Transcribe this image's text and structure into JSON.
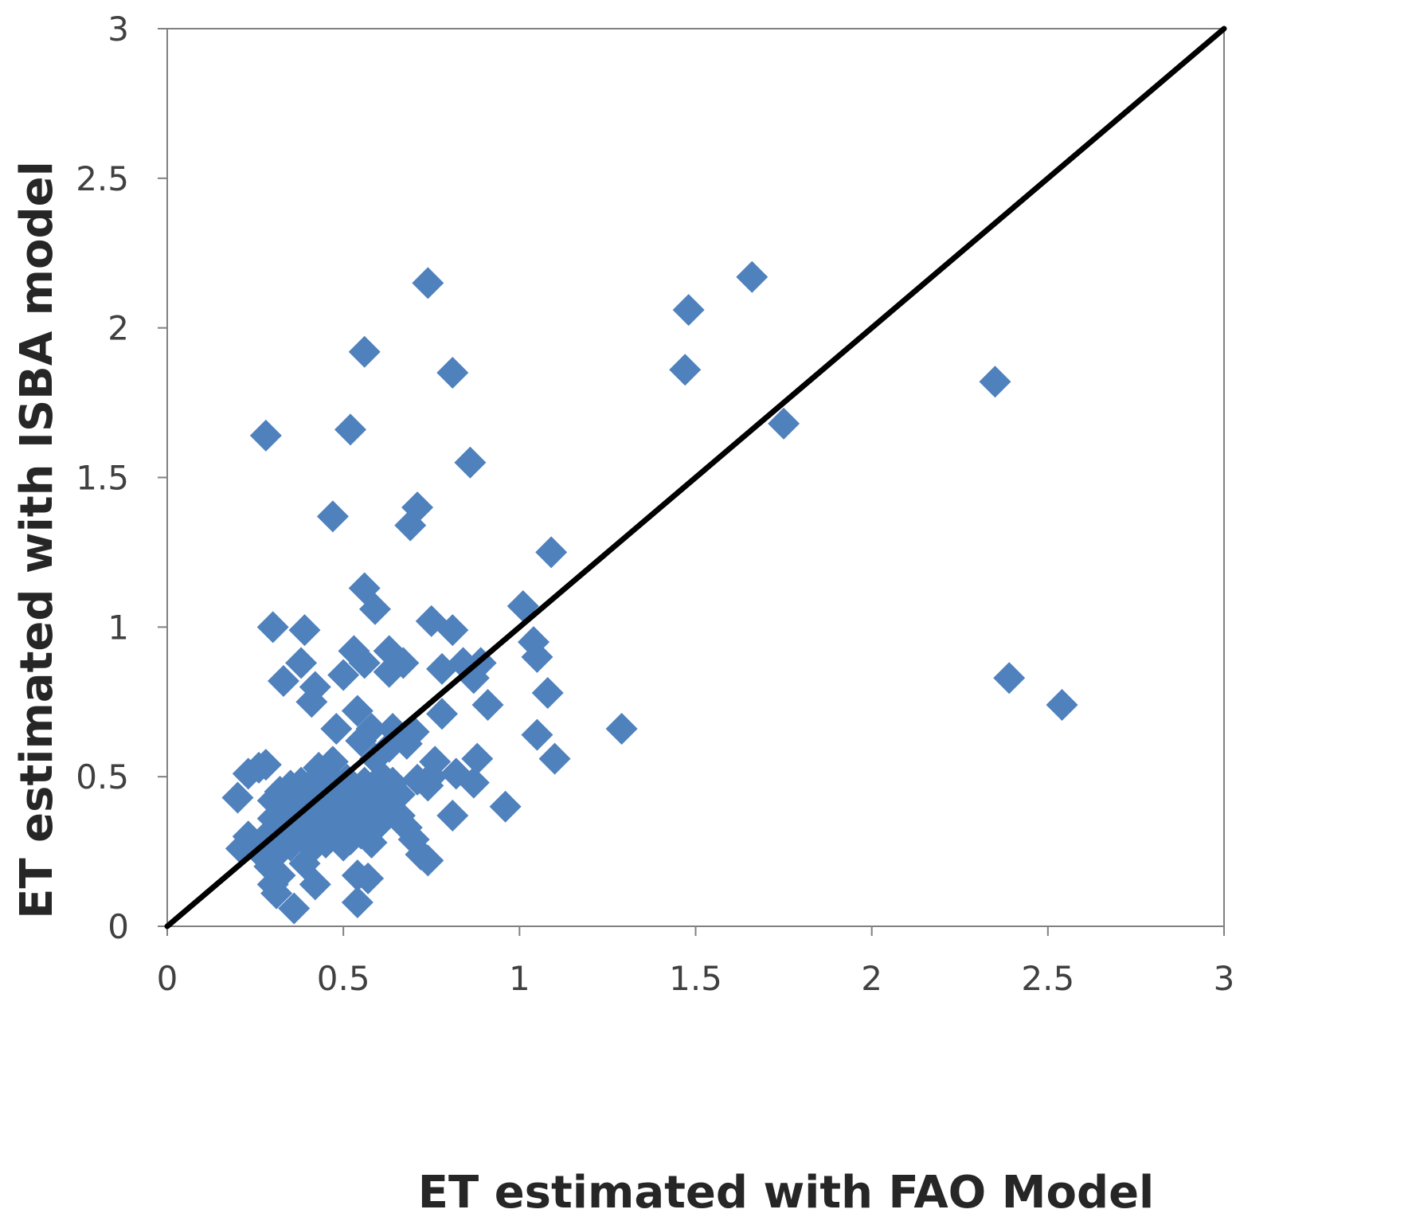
{
  "chart_data": {
    "type": "scatter",
    "title": "",
    "xlabel": "ET estimated with FAO Model",
    "ylabel": "ET estimated with ISBA model",
    "xlim": [
      0,
      3
    ],
    "ylim": [
      0,
      3
    ],
    "x_ticks": [
      "0",
      "0.5",
      "1",
      "1.5",
      "2",
      "2.5",
      "3"
    ],
    "y_ticks": [
      "0",
      "0.5",
      "1",
      "1.5",
      "2",
      "2.5",
      "3"
    ],
    "grid": false,
    "legend": "none",
    "marker": "diamond",
    "marker_color": "#4F81BD",
    "line_color": "#000000",
    "reference_line": {
      "name": "1:1 line",
      "x": [
        0,
        3
      ],
      "y": [
        0,
        3
      ]
    },
    "series": [
      {
        "name": "ET",
        "points": [
          [
            0.74,
            2.15
          ],
          [
            1.66,
            2.17
          ],
          [
            1.48,
            2.06
          ],
          [
            0.56,
            1.92
          ],
          [
            0.81,
            1.85
          ],
          [
            1.47,
            1.86
          ],
          [
            2.35,
            1.82
          ],
          [
            1.75,
            1.68
          ],
          [
            0.28,
            1.64
          ],
          [
            0.52,
            1.66
          ],
          [
            0.86,
            1.55
          ],
          [
            0.71,
            1.4
          ],
          [
            0.69,
            1.34
          ],
          [
            0.47,
            1.37
          ],
          [
            1.09,
            1.25
          ],
          [
            0.56,
            1.13
          ],
          [
            0.59,
            1.06
          ],
          [
            1.01,
            1.07
          ],
          [
            0.3,
            1.0
          ],
          [
            0.39,
            0.99
          ],
          [
            0.75,
            1.02
          ],
          [
            0.81,
            0.99
          ],
          [
            1.04,
            0.95
          ],
          [
            1.05,
            0.9
          ],
          [
            0.38,
            0.88
          ],
          [
            0.53,
            0.92
          ],
          [
            0.63,
            0.92
          ],
          [
            0.67,
            0.88
          ],
          [
            0.5,
            0.84
          ],
          [
            0.56,
            0.88
          ],
          [
            0.33,
            0.82
          ],
          [
            0.42,
            0.8
          ],
          [
            0.78,
            0.86
          ],
          [
            0.84,
            0.88
          ],
          [
            0.89,
            0.88
          ],
          [
            0.87,
            0.83
          ],
          [
            0.63,
            0.85
          ],
          [
            2.39,
            0.83
          ],
          [
            1.08,
            0.78
          ],
          [
            0.41,
            0.75
          ],
          [
            2.54,
            0.74
          ],
          [
            0.91,
            0.74
          ],
          [
            0.78,
            0.71
          ],
          [
            0.54,
            0.72
          ],
          [
            0.48,
            0.66
          ],
          [
            0.58,
            0.66
          ],
          [
            0.64,
            0.66
          ],
          [
            0.7,
            0.65
          ],
          [
            1.29,
            0.66
          ],
          [
            1.05,
            0.64
          ],
          [
            0.55,
            0.62
          ],
          [
            0.63,
            0.6
          ],
          [
            0.68,
            0.61
          ],
          [
            0.59,
            0.56
          ],
          [
            1.1,
            0.56
          ],
          [
            0.88,
            0.56
          ],
          [
            0.76,
            0.55
          ],
          [
            0.47,
            0.55
          ],
          [
            0.26,
            0.53
          ],
          [
            0.28,
            0.54
          ],
          [
            0.23,
            0.51
          ],
          [
            0.75,
            0.5
          ],
          [
            0.82,
            0.51
          ],
          [
            0.87,
            0.48
          ],
          [
            0.71,
            0.49
          ],
          [
            0.64,
            0.48
          ],
          [
            0.6,
            0.46
          ],
          [
            0.56,
            0.48
          ],
          [
            0.51,
            0.49
          ],
          [
            0.46,
            0.5
          ],
          [
            0.42,
            0.49
          ],
          [
            0.38,
            0.48
          ],
          [
            0.35,
            0.47
          ],
          [
            0.32,
            0.45
          ],
          [
            0.74,
            0.47
          ],
          [
            0.4,
            0.45
          ],
          [
            0.49,
            0.44
          ],
          [
            0.55,
            0.43
          ],
          [
            0.66,
            0.44
          ],
          [
            0.2,
            0.43
          ],
          [
            0.3,
            0.42
          ],
          [
            0.36,
            0.41
          ],
          [
            0.44,
            0.41
          ],
          [
            0.52,
            0.41
          ],
          [
            0.58,
            0.4
          ],
          [
            0.62,
            0.42
          ],
          [
            0.34,
            0.39
          ],
          [
            0.41,
            0.38
          ],
          [
            0.47,
            0.37
          ],
          [
            0.56,
            0.38
          ],
          [
            0.63,
            0.38
          ],
          [
            0.96,
            0.4
          ],
          [
            0.81,
            0.37
          ],
          [
            0.66,
            0.37
          ],
          [
            0.39,
            0.35
          ],
          [
            0.45,
            0.34
          ],
          [
            0.51,
            0.35
          ],
          [
            0.3,
            0.36
          ],
          [
            0.35,
            0.33
          ],
          [
            0.6,
            0.34
          ],
          [
            0.68,
            0.33
          ],
          [
            0.33,
            0.31
          ],
          [
            0.43,
            0.31
          ],
          [
            0.49,
            0.31
          ],
          [
            0.55,
            0.31
          ],
          [
            0.23,
            0.3
          ],
          [
            0.28,
            0.3
          ],
          [
            0.39,
            0.29
          ],
          [
            0.45,
            0.28
          ],
          [
            0.52,
            0.29
          ],
          [
            0.58,
            0.28
          ],
          [
            0.7,
            0.29
          ],
          [
            0.35,
            0.27
          ],
          [
            0.42,
            0.27
          ],
          [
            0.5,
            0.27
          ],
          [
            0.21,
            0.26
          ],
          [
            0.26,
            0.25
          ],
          [
            0.31,
            0.24
          ],
          [
            0.72,
            0.24
          ],
          [
            0.74,
            0.22
          ],
          [
            0.29,
            0.2
          ],
          [
            0.39,
            0.21
          ],
          [
            0.32,
            0.17
          ],
          [
            0.54,
            0.17
          ],
          [
            0.57,
            0.16
          ],
          [
            0.3,
            0.14
          ],
          [
            0.42,
            0.14
          ],
          [
            0.31,
            0.11
          ],
          [
            0.54,
            0.08
          ],
          [
            0.36,
            0.06
          ],
          [
            0.46,
            0.47
          ],
          [
            0.53,
            0.46
          ],
          [
            0.37,
            0.44
          ],
          [
            0.61,
            0.5
          ],
          [
            0.43,
            0.53
          ]
        ]
      }
    ]
  }
}
